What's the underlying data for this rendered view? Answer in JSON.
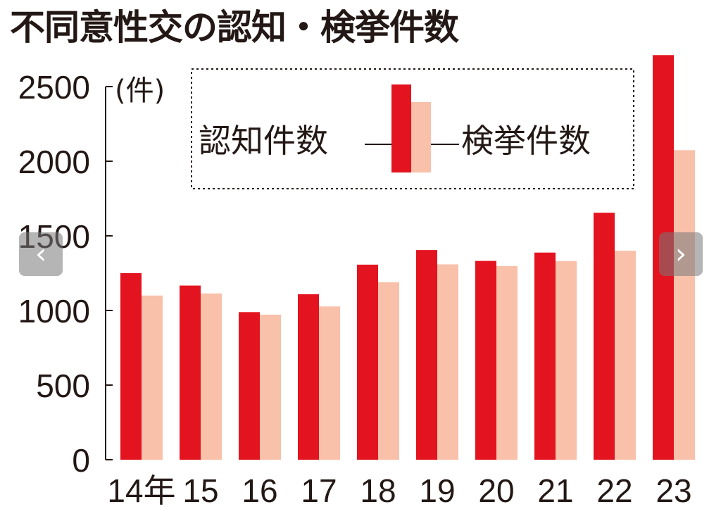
{
  "title": "不同意性交の認知・検挙件数",
  "nav": {
    "prev_icon": "‹",
    "next_icon": "›"
  },
  "chart_data": {
    "type": "bar",
    "title": "不同意性交の認知・検挙件数",
    "unit": "(件)",
    "categories": [
      "14年",
      "15",
      "16",
      "17",
      "18",
      "19",
      "20",
      "21",
      "22",
      "23"
    ],
    "series": [
      {
        "name": "認知件数",
        "color": "#e3141f",
        "values": [
          1250,
          1167,
          989,
          1109,
          1307,
          1405,
          1332,
          1388,
          1655,
          2711
        ]
      },
      {
        "name": "検挙件数",
        "color": "#f9c0aa",
        "values": [
          1100,
          1114,
          972,
          1027,
          1189,
          1309,
          1298,
          1331,
          1400,
          2074
        ]
      }
    ],
    "ylim": [
      0,
      2500
    ],
    "yticks": [
      0,
      500,
      1000,
      1500,
      2000,
      2500
    ],
    "grid": false,
    "legend_position": "top-center"
  }
}
